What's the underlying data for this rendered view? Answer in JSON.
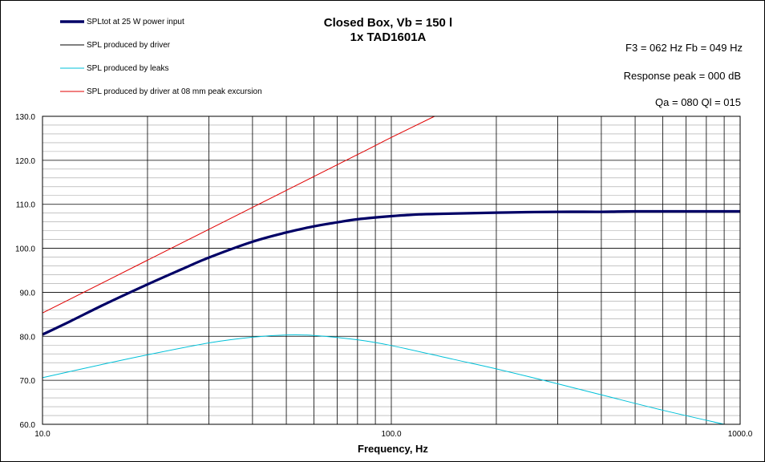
{
  "chart_data": {
    "type": "line",
    "title": "Closed Box, Vb = 150 l",
    "subtitle": "1x TAD1601A",
    "xlabel": "Frequency, Hz",
    "ylabel": "",
    "x_scale": "log",
    "xlim": [
      10,
      1000
    ],
    "ylim": [
      60,
      130
    ],
    "x_ticks": [
      "10.0",
      "100.0",
      "1000.0"
    ],
    "y_ticks": [
      "60.0",
      "70.0",
      "80.0",
      "90.0",
      "100.0",
      "110.0",
      "120.0",
      "130.0"
    ],
    "grid": true,
    "legend_position": "top-left",
    "annotations": [
      "F3 = 062 Hz  Fb = 049 Hz",
      "Response  peak = 000 dB",
      "Qa = 080  Ql = 015"
    ],
    "series": [
      {
        "name": "SPLtot at 25 W power input",
        "color": "#000066",
        "x": [
          10,
          12,
          15,
          20,
          25,
          30,
          40,
          50,
          60,
          70,
          80,
          100,
          120,
          150,
          200,
          300,
          400,
          500,
          700,
          1000
        ],
        "y": [
          80.4,
          83.4,
          87.2,
          91.8,
          95.2,
          97.9,
          101.5,
          103.6,
          105.0,
          105.9,
          106.6,
          107.3,
          107.7,
          107.9,
          108.1,
          108.3,
          108.3,
          108.4,
          108.4,
          108.4
        ]
      },
      {
        "name": "SPL produced by driver",
        "color": "#000000",
        "x": [
          10,
          12,
          15,
          20,
          25,
          30,
          40,
          50,
          60,
          70,
          80,
          100,
          120,
          150,
          200,
          300,
          400,
          500,
          700,
          1000
        ],
        "y": [
          80.4,
          83.4,
          87.2,
          91.8,
          95.2,
          97.9,
          101.5,
          103.6,
          105.0,
          105.9,
          106.6,
          107.3,
          107.7,
          107.9,
          108.1,
          108.3,
          108.3,
          108.4,
          108.4,
          108.4
        ]
      },
      {
        "name": "SPL produced by leaks",
        "color": "#00c0d8",
        "x": [
          10,
          15,
          20,
          30,
          40,
          50,
          60,
          80,
          100,
          150,
          200,
          300,
          400,
          600,
          900
        ],
        "y": [
          70.6,
          73.7,
          75.8,
          78.5,
          79.8,
          80.3,
          80.2,
          79.2,
          77.9,
          74.8,
          72.6,
          69.2,
          66.7,
          63.2,
          60.0
        ]
      },
      {
        "name": "SPL produced by driver at 08 mm peak excursion",
        "color": "#e00000",
        "x": [
          10,
          20,
          40,
          80,
          100,
          133
        ],
        "y": [
          85.3,
          97.3,
          109.3,
          121.3,
          125.2,
          130.0
        ]
      }
    ]
  }
}
